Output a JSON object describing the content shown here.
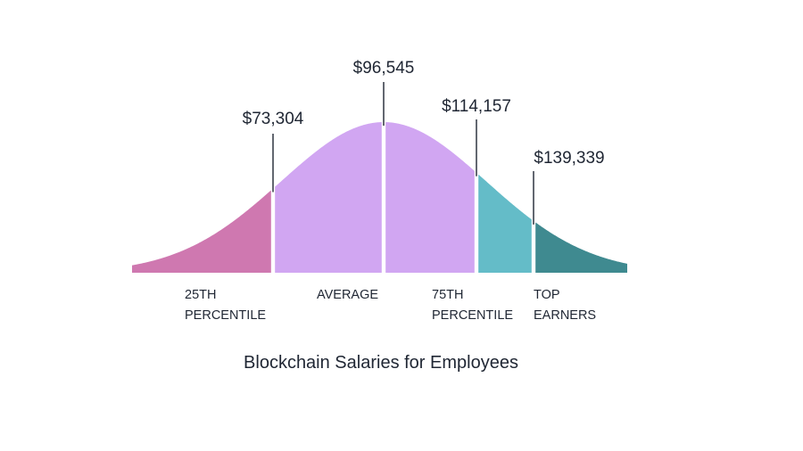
{
  "chart_data": {
    "type": "area",
    "title": "Blockchain Salaries for Employees",
    "xlabel": "",
    "ylabel": "",
    "distribution": "normal",
    "grid": false,
    "legend": "none",
    "markers": [
      {
        "label": "$73,304",
        "value": 73304
      },
      {
        "label": "$96,545",
        "value": 96545
      },
      {
        "label": "$114,157",
        "value": 114157
      },
      {
        "label": "$139,339",
        "value": 139339
      }
    ],
    "segments": [
      {
        "lines": [
          "25TH",
          "PERCENTILE"
        ],
        "color": "#cf78b0"
      },
      {
        "lines": [
          "AVERAGE"
        ],
        "color": "#d1a6f2"
      },
      {
        "lines": [
          "AVERAGE"
        ],
        "color": "#d1a6f2"
      },
      {
        "lines": [
          "75TH",
          "PERCENTILE"
        ],
        "color": "#64bcc8"
      },
      {
        "lines": [
          "TOP",
          "EARNERS"
        ],
        "color": "#3f8a90"
      }
    ]
  }
}
